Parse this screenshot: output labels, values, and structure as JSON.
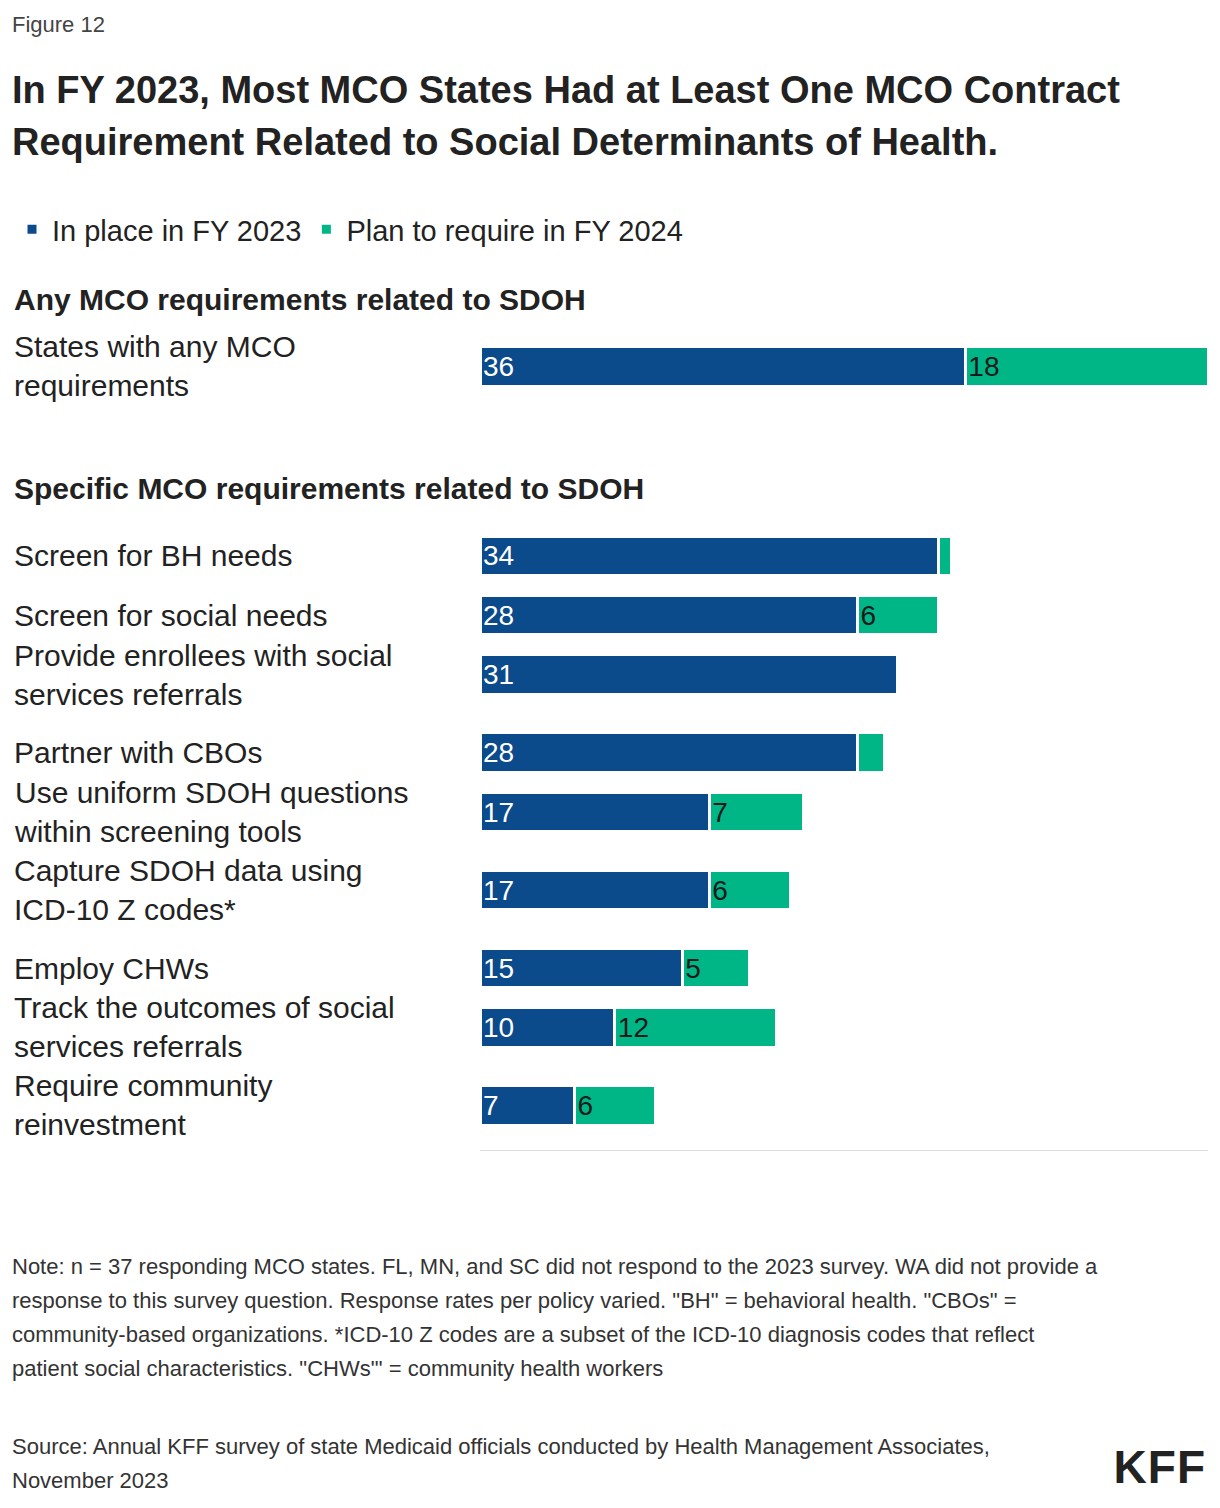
{
  "chart_data": {
    "type": "bar",
    "orientation": "horizontal",
    "stacked": true,
    "data_labels": true,
    "tick_labels": false,
    "grid": false,
    "legend": "top-left",
    "subtitle": "Figure 12",
    "title": "In FY 2023, Most MCO States Had at Least One MCO Contract Requirement Related to Social Determinants of Health.",
    "xlim": [
      0,
      54
    ],
    "xticks": [],
    "groups": [
      {
        "heading": "Any MCO requirements related to SDOH",
        "categories": [
          "States with any MCO requirements"
        ]
      },
      {
        "heading": "Specific MCO requirements related to SDOH",
        "categories": [
          "Screen for BH needs",
          "Screen for social needs",
          "Provide enrollees with social services referrals",
          "Partner with CBOs",
          "Use uniform SDOH questions within screening tools",
          "Capture SDOH data using ICD-10 Z codes*",
          "Employ CHWs",
          "Track the outcomes of social services referrals",
          "Require community reinvestment"
        ]
      }
    ],
    "series": [
      {
        "name": "In place in FY 2023",
        "color": "#0b4a8b",
        "values": [
          36,
          34,
          28,
          31,
          28,
          17,
          17,
          15,
          10,
          7
        ]
      },
      {
        "name": "Plan to require in FY 2024",
        "color": "#00b586",
        "values": [
          18,
          1,
          6,
          null,
          2,
          7,
          6,
          5,
          12,
          6
        ],
        "value_labels": [
          "18",
          null,
          "6",
          null,
          null,
          "7",
          "6",
          "5",
          "12",
          "6"
        ]
      }
    ],
    "notes": "Note: n = 37 responding MCO states. FL, MN, and SC did not respond to the 2023 survey. WA did not provide a response to this survey question. Response rates per policy varied. \"BH\" = behavioral health. \"CBOs\" = community-based organizations. *ICD-10 Z codes are a subset of the ICD-10 diagnosis codes that reflect patient social characteristics. \"CHWs\"' = community health workers",
    "source": "Source: Annual KFF survey of state Medicaid officials conducted by Health Management Associates, November 2023",
    "logo": "KFF"
  }
}
